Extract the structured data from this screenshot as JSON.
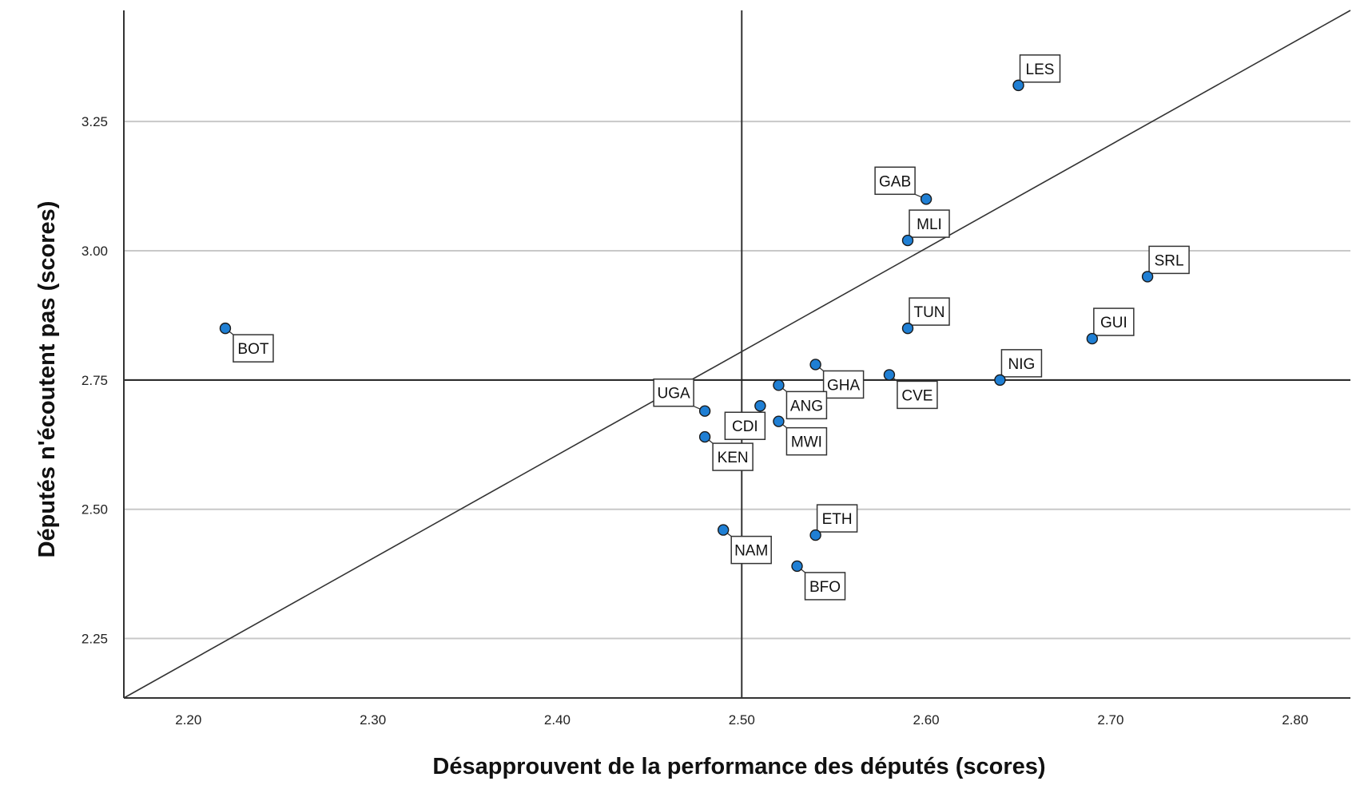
{
  "chart_data": {
    "type": "scatter",
    "xlabel": "Désapprouvent de la performance des députés (scores)",
    "ylabel": "Députés n'écoutent pas (scores)",
    "xlim": [
      2.165,
      2.83
    ],
    "ylim": [
      2.135,
      3.465
    ],
    "x_ticks": [
      "2.20",
      "2.30",
      "2.40",
      "2.50",
      "2.60",
      "2.70",
      "2.80"
    ],
    "y_ticks": [
      "2.25",
      "2.50",
      "2.75",
      "3.00",
      "3.25"
    ],
    "grid": "horizontal",
    "reference_lines": {
      "x": 2.5,
      "y": 2.75
    },
    "diagonal": {
      "from": [
        2.165,
        2.135
      ],
      "to": [
        2.83,
        3.465
      ]
    },
    "marker_color": "#1f7fd4",
    "points": [
      {
        "label": "LES",
        "x": 2.65,
        "y": 3.32,
        "lpos": "ne"
      },
      {
        "label": "GAB",
        "x": 2.6,
        "y": 3.1,
        "lpos": "nw"
      },
      {
        "label": "MLI",
        "x": 2.59,
        "y": 3.02,
        "lpos": "ne"
      },
      {
        "label": "SRL",
        "x": 2.72,
        "y": 2.95,
        "lpos": "ne"
      },
      {
        "label": "TUN",
        "x": 2.59,
        "y": 2.85,
        "lpos": "ne"
      },
      {
        "label": "GUI",
        "x": 2.69,
        "y": 2.83,
        "lpos": "ne"
      },
      {
        "label": "BOT",
        "x": 2.22,
        "y": 2.85,
        "lpos": "se"
      },
      {
        "label": "NIG",
        "x": 2.64,
        "y": 2.75,
        "lpos": "ne"
      },
      {
        "label": "GHA",
        "x": 2.54,
        "y": 2.78,
        "lpos": "se"
      },
      {
        "label": "CVE",
        "x": 2.58,
        "y": 2.76,
        "lpos": "se"
      },
      {
        "label": "UGA",
        "x": 2.48,
        "y": 2.69,
        "lpos": "nw"
      },
      {
        "label": "ANG",
        "x": 2.52,
        "y": 2.74,
        "lpos": "se"
      },
      {
        "label": "CDI",
        "x": 2.51,
        "y": 2.7,
        "lpos": "sw"
      },
      {
        "label": "MWI",
        "x": 2.52,
        "y": 2.67,
        "lpos": "se"
      },
      {
        "label": "KEN",
        "x": 2.48,
        "y": 2.64,
        "lpos": "se"
      },
      {
        "label": "ETH",
        "x": 2.54,
        "y": 2.45,
        "lpos": "ne"
      },
      {
        "label": "NAM",
        "x": 2.49,
        "y": 2.46,
        "lpos": "se"
      },
      {
        "label": "BFO",
        "x": 2.53,
        "y": 2.39,
        "lpos": "se"
      }
    ]
  }
}
